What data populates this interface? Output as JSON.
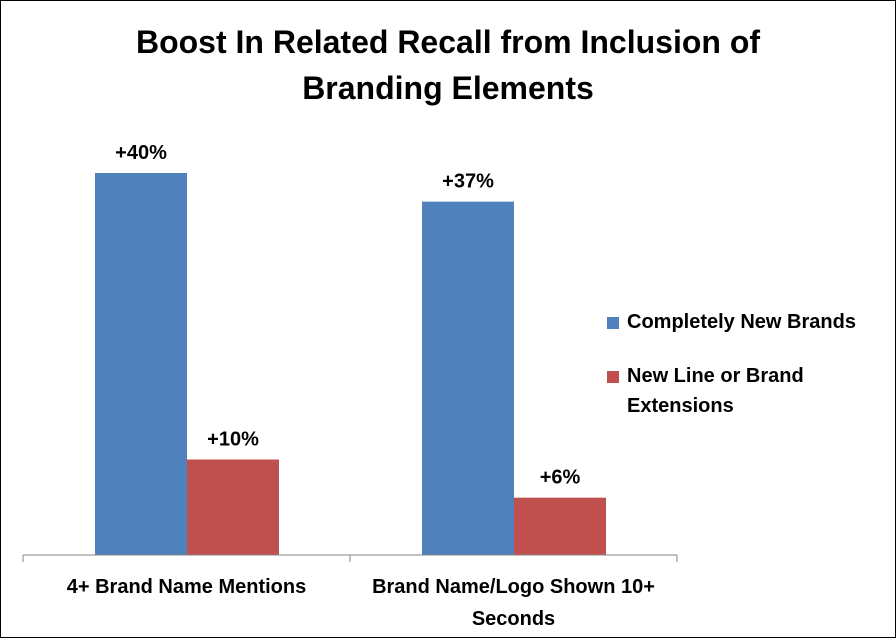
{
  "chart_data": {
    "type": "bar",
    "title": [
      "Boost In Related Recall from Inclusion of",
      "Branding Elements"
    ],
    "categories": [
      [
        "4+ Brand Name Mentions"
      ],
      [
        "Brand Name/Logo Shown 10+",
        "Seconds"
      ]
    ],
    "series": [
      {
        "name": "Completely New Brands",
        "values": [
          40,
          37
        ],
        "labels": [
          "+40%",
          "+37%"
        ],
        "color": "#4F81BD"
      },
      {
        "name": "New Line or Brand Extensions",
        "legend_lines": [
          "New Line or Brand",
          "Extensions"
        ],
        "values": [
          10,
          6
        ],
        "labels": [
          "+10%",
          "+6%"
        ],
        "color": "#C0504D"
      }
    ],
    "ylim": [
      0,
      45
    ],
    "grid": false,
    "legend_position": "right"
  }
}
